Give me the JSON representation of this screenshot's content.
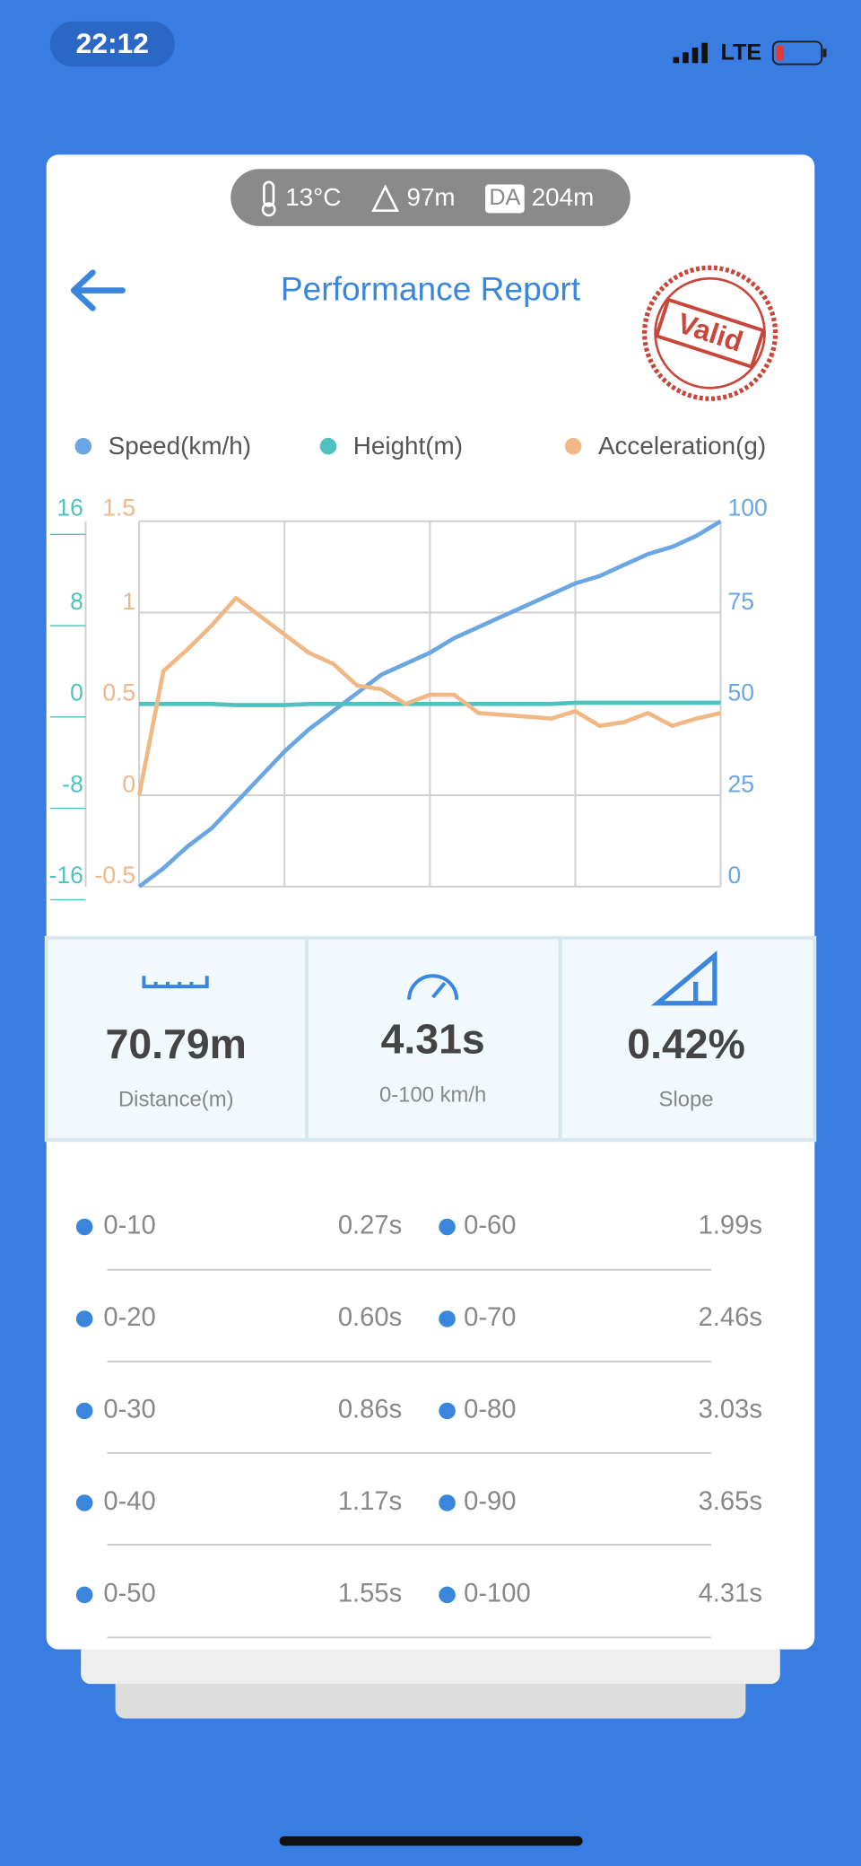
{
  "status_bar": {
    "time": "22:12",
    "network": "LTE"
  },
  "conditions": {
    "temperature": "13°C",
    "altitude": "97m",
    "da_label": "DA",
    "density_altitude": "204m"
  },
  "header": {
    "title": "Performance Report",
    "stamp": "Valid"
  },
  "chart_data": {
    "type": "line",
    "grid": true,
    "series": [
      {
        "name": "Speed(km/h)",
        "color": "#6aa6e2",
        "axis": "y2",
        "values": [
          0,
          5,
          11,
          16,
          23,
          30,
          37,
          43,
          48,
          53,
          58,
          61,
          64,
          68,
          71,
          74,
          77,
          80,
          83,
          85,
          88,
          91,
          93,
          96,
          100
        ]
      },
      {
        "name": "Height(m)",
        "color": "#4fc1c0",
        "values": [
          0,
          0,
          0,
          0,
          -0.1,
          -0.1,
          -0.1,
          0,
          0,
          0,
          0,
          0,
          0,
          0,
          0,
          0,
          0,
          0,
          0.1,
          0.1,
          0.1,
          0.1,
          0.1,
          0.1,
          0.1
        ]
      },
      {
        "name": "Acceleration(g)",
        "color": "#f0b885",
        "axis": "y3",
        "values": [
          0,
          0.68,
          0.8,
          0.93,
          1.08,
          0.98,
          0.88,
          0.78,
          0.72,
          0.6,
          0.58,
          0.5,
          0.55,
          0.55,
          0.45,
          0.44,
          0.43,
          0.42,
          0.46,
          0.38,
          0.4,
          0.45,
          0.38,
          0.42,
          0.45
        ]
      }
    ],
    "ylim": [
      -16,
      16
    ],
    "yticks": [
      -16,
      -8,
      0,
      8,
      16
    ],
    "y2lim": [
      0,
      100
    ],
    "y2ticks": [
      0,
      25,
      50,
      75,
      100
    ],
    "y3lim": [
      -0.5,
      1.5
    ],
    "y3ticks": [
      -0.5,
      0,
      0.5,
      1,
      1.5
    ]
  },
  "stats": [
    {
      "value": "70.79m",
      "label": "Distance(m)"
    },
    {
      "value": "4.31s",
      "label": "0-100 km/h"
    },
    {
      "value": "0.42%",
      "label": "Slope"
    }
  ],
  "splits": [
    {
      "range": "0-10",
      "time": "0.27s"
    },
    {
      "range": "0-20",
      "time": "0.60s"
    },
    {
      "range": "0-30",
      "time": "0.86s"
    },
    {
      "range": "0-40",
      "time": "1.17s"
    },
    {
      "range": "0-50",
      "time": "1.55s"
    },
    {
      "range": "0-60",
      "time": "1.99s"
    },
    {
      "range": "0-70",
      "time": "2.46s"
    },
    {
      "range": "0-80",
      "time": "3.03s"
    },
    {
      "range": "0-90",
      "time": "3.65s"
    },
    {
      "range": "0-100",
      "time": "4.31s"
    }
  ]
}
